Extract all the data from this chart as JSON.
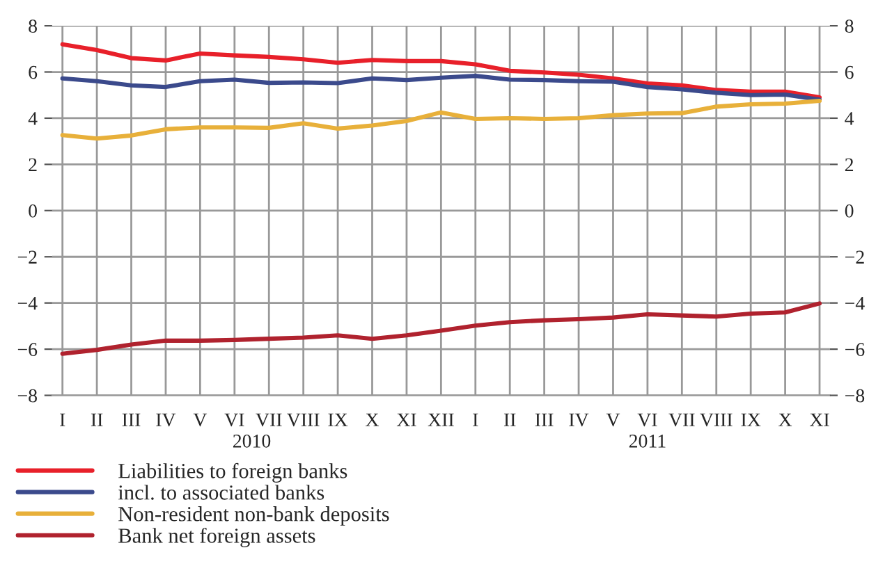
{
  "chart_data": {
    "type": "line",
    "categories": [
      "I",
      "II",
      "III",
      "IV",
      "V",
      "VI",
      "VII",
      "VIII",
      "IX",
      "X",
      "XI",
      "XII",
      "I",
      "II",
      "III",
      "IV",
      "V",
      "VI",
      "VII",
      "VIII",
      "IX",
      "X",
      "XI"
    ],
    "series": [
      {
        "name": "Liabilities to foreign banks",
        "color": "#e8202a",
        "values": [
          7.2,
          6.95,
          6.6,
          6.5,
          6.8,
          6.72,
          6.65,
          6.55,
          6.4,
          6.52,
          6.47,
          6.47,
          6.33,
          6.05,
          5.98,
          5.88,
          5.72,
          5.5,
          5.42,
          5.22,
          5.15,
          5.15,
          4.9
        ]
      },
      {
        "name": "incl. to associated banks",
        "color": "#3b4a8c",
        "values": [
          5.72,
          5.6,
          5.42,
          5.35,
          5.6,
          5.67,
          5.53,
          5.55,
          5.52,
          5.72,
          5.65,
          5.75,
          5.83,
          5.67,
          5.65,
          5.6,
          5.58,
          5.35,
          5.25,
          5.1,
          5.0,
          5.02,
          4.8
        ]
      },
      {
        "name": "Non-resident non-bank deposits",
        "color": "#e8b03a",
        "values": [
          3.27,
          3.12,
          3.25,
          3.52,
          3.6,
          3.6,
          3.58,
          3.78,
          3.55,
          3.68,
          3.88,
          4.25,
          3.97,
          4.0,
          3.97,
          4.0,
          4.13,
          4.2,
          4.22,
          4.5,
          4.6,
          4.63,
          4.75
        ]
      },
      {
        "name": "Bank net foreign assets",
        "color": "#b0222e",
        "values": [
          -6.2,
          -6.03,
          -5.8,
          -5.63,
          -5.63,
          -5.6,
          -5.55,
          -5.5,
          -5.4,
          -5.55,
          -5.4,
          -5.2,
          -4.98,
          -4.83,
          -4.75,
          -4.7,
          -4.63,
          -4.49,
          -4.54,
          -4.59,
          -4.46,
          -4.41,
          -4.02
        ]
      }
    ],
    "ylim": [
      -8,
      8
    ],
    "yticks": [
      {
        "value": -8,
        "label": "−8"
      },
      {
        "value": -6,
        "label": "−6"
      },
      {
        "value": -4,
        "label": "−4"
      },
      {
        "value": -2,
        "label": "−2"
      },
      0,
      2,
      4,
      6,
      8
    ],
    "y2lim": [
      -8,
      8
    ],
    "y2ticks": [
      {
        "value": -8,
        "label": "−8"
      },
      {
        "value": -6,
        "label": "−6"
      },
      {
        "value": -4,
        "label": "−4"
      },
      {
        "value": -2,
        "label": "−2"
      },
      0,
      2,
      4,
      6,
      8
    ],
    "annotations": [
      "2010",
      "2011"
    ],
    "grid": true,
    "legend": "bottom left",
    "marker": "none",
    "line_style": "solid"
  }
}
